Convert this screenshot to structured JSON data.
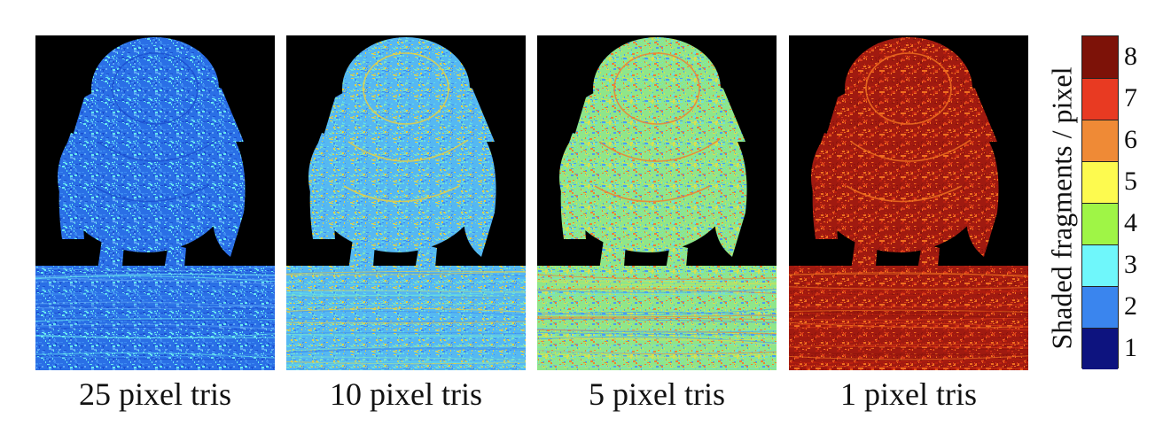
{
  "panels": [
    {
      "caption": "25 pixel tris",
      "level": 2.4,
      "colors": [
        "#2a6fe6",
        "#3d8bf0",
        "#5ea7f5",
        "#68e8f0",
        "#1b4fd0"
      ]
    },
    {
      "caption": "10 pixel tris",
      "level": 2.9,
      "colors": [
        "#55b8f2",
        "#63dde8",
        "#3f8ef0",
        "#7fe0c0",
        "#e8d040"
      ]
    },
    {
      "caption": "5 pixel tris",
      "level": 3.7,
      "colors": [
        "#8ee68a",
        "#6fe0d8",
        "#4a9cf0",
        "#d8e050",
        "#f08030"
      ]
    },
    {
      "caption": "1 pixel tris",
      "level": 7.7,
      "colors": [
        "#a01a10",
        "#b82010",
        "#d83a18",
        "#8a140c",
        "#f07020"
      ]
    }
  ],
  "legend": {
    "title": "Shaded fragments / pixel",
    "levels": [
      {
        "label": "8",
        "color": "#7d1208"
      },
      {
        "label": "7",
        "color": "#e83a22"
      },
      {
        "label": "6",
        "color": "#ef8a36"
      },
      {
        "label": "5",
        "color": "#fdfa4f"
      },
      {
        "label": "4",
        "color": "#9ff546"
      },
      {
        "label": "3",
        "color": "#6ff7fb"
      },
      {
        "label": "2",
        "color": "#3a85ee"
      },
      {
        "label": "1",
        "color": "#0d137f"
      }
    ]
  }
}
